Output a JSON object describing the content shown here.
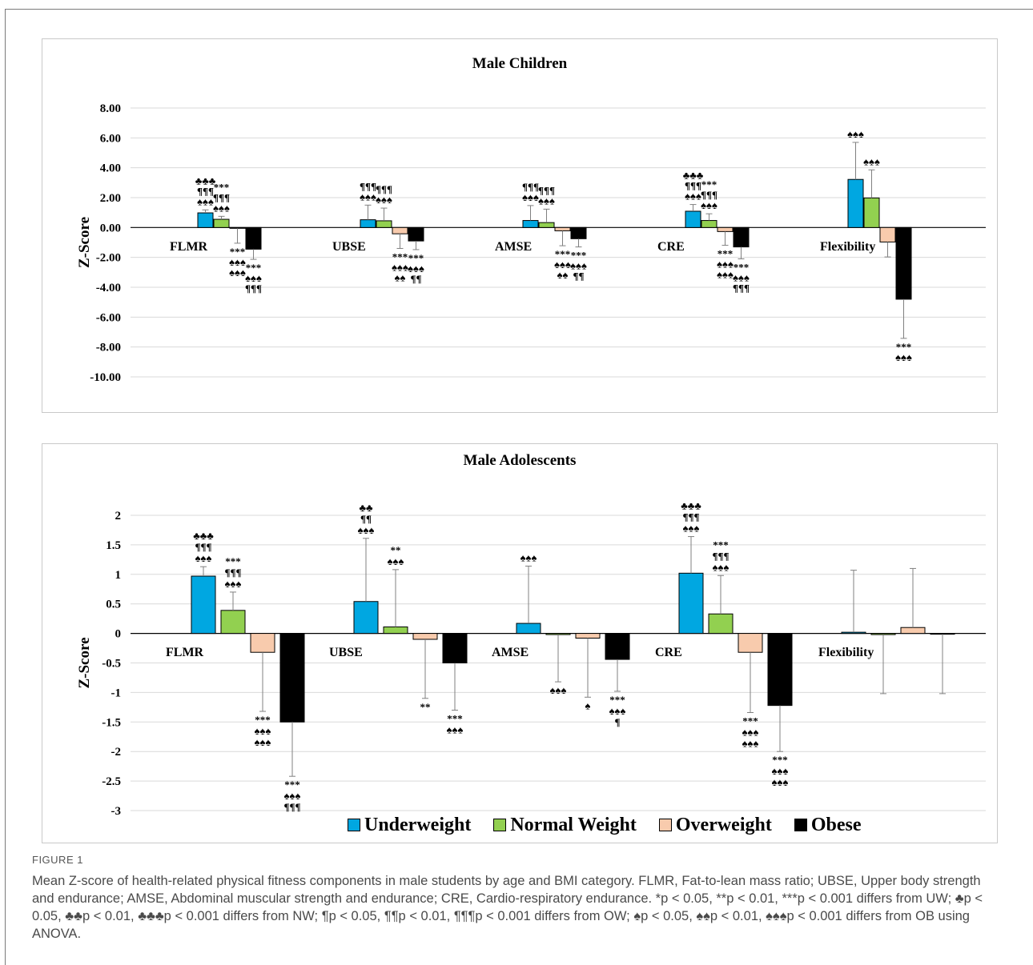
{
  "chart_data": [
    {
      "type": "bar",
      "title": "Male Children",
      "ylabel": "Z-Score",
      "xlabel": "",
      "ylim": [
        -10,
        8
      ],
      "y_ticks": [
        "8.00",
        "6.00",
        "4.00",
        "2.00",
        "0.00",
        "-2.00",
        "-4.00",
        "-6.00",
        "-8.00",
        "-10.00"
      ],
      "y_tick_values": [
        8,
        6,
        4,
        2,
        0,
        -2,
        -4,
        -6,
        -8,
        -10
      ],
      "categories": [
        "FLMR",
        "UBSE",
        "AMSE",
        "CRE",
        "Flexibility"
      ],
      "grid": true,
      "series": [
        {
          "name": "Underweight",
          "color": "#00a7e1",
          "values": [
            0.98,
            0.52,
            0.47,
            1.09,
            3.22
          ],
          "errors": [
            0.2,
            0.98,
            1.0,
            0.45,
            2.48
          ]
        },
        {
          "name": "Normal Weight",
          "color": "#92d050",
          "values": [
            0.55,
            0.45,
            0.33,
            0.47,
            1.98
          ],
          "errors": [
            0.2,
            0.85,
            0.9,
            0.45,
            1.88
          ]
        },
        {
          "name": "Overweight",
          "color": "#f8cbad",
          "values": [
            -0.05,
            -0.42,
            -0.22,
            -0.27,
            -0.97
          ],
          "errors": [
            1.0,
            0.98,
            1.0,
            0.92,
            1.0
          ]
        },
        {
          "name": "Obese",
          "color": "#000000",
          "values": [
            -1.45,
            -0.9,
            -0.75,
            -1.3,
            -4.8
          ],
          "errors": [
            0.68,
            0.58,
            0.55,
            0.8,
            2.62
          ]
        }
      ],
      "annotations": [
        [
          "♣♣♣\n¶¶¶\n♠♠♠",
          "***\n¶¶¶\n♠♠♠",
          "***\n♠♠♠\n♠♠♠",
          "***\n♠♠♠\n¶¶¶"
        ],
        [
          "¶¶¶\n♠♠♠",
          "¶¶¶\n♠♠♠",
          "***\n♠♠♠\n♠♠",
          "***\n♠♠♠\n¶¶"
        ],
        [
          "¶¶¶\n♠♠♠",
          "¶¶¶\n♠♠♠",
          "***\n♠♠♠\n♠♠",
          "***\n♠♠♠\n¶¶"
        ],
        [
          "♣♣♣\n¶¶¶\n♠♠♠",
          "***\n¶¶¶\n♠♠♠",
          "***\n♠♠♠\n♠♠♠",
          "***\n♠♠♠\n¶¶¶"
        ],
        [
          "♠♠♠",
          "♠♠♠",
          "",
          "***\n♠♠♠"
        ]
      ]
    },
    {
      "type": "bar",
      "title": "Male Adolescents",
      "ylabel": "Z-Score",
      "xlabel": "",
      "ylim": [
        -3,
        2
      ],
      "y_ticks": [
        "2",
        "1.5",
        "1",
        "0.5",
        "0",
        "-0.5",
        "-1",
        "-1.5",
        "-2",
        "-2.5",
        "-3"
      ],
      "y_tick_values": [
        2,
        1.5,
        1,
        0.5,
        0,
        -0.5,
        -1,
        -1.5,
        -2,
        -2.5,
        -3
      ],
      "categories": [
        "FLMR",
        "UBSE",
        "AMSE",
        "CRE",
        "Flexibility"
      ],
      "grid": true,
      "series": [
        {
          "name": "Underweight",
          "color": "#00a7e1",
          "values": [
            0.97,
            0.54,
            0.17,
            1.02,
            0.02
          ],
          "errors": [
            0.16,
            1.07,
            0.97,
            0.62,
            1.05
          ]
        },
        {
          "name": "Normal Weight",
          "color": "#92d050",
          "values": [
            0.39,
            0.11,
            -0.02,
            0.33,
            -0.02
          ],
          "errors": [
            0.31,
            0.97,
            0.8,
            0.65,
            1.0
          ]
        },
        {
          "name": "Overweight",
          "color": "#f8cbad",
          "values": [
            -0.32,
            -0.1,
            -0.08,
            -0.32,
            0.1
          ],
          "errors": [
            1.0,
            1.0,
            1.0,
            1.02,
            1.0
          ]
        },
        {
          "name": "Obese",
          "color": "#000000",
          "values": [
            -1.5,
            -0.5,
            -0.44,
            -1.22,
            -0.01
          ],
          "errors": [
            0.92,
            0.8,
            0.54,
            0.78,
            1.01
          ]
        }
      ],
      "annotations": [
        [
          "♣♣♣\n¶¶¶\n♠♠♠",
          "***\n¶¶¶\n♠♠♠",
          "***\n♠♠♠\n♠♠♠",
          "***\n♠♠♠\n¶¶¶"
        ],
        [
          "♣♣\n¶¶\n♠♠♠",
          "**\n♠♠♠",
          "**",
          "***\n♠♠♠"
        ],
        [
          "♠♠♠",
          "♠♠♠",
          "♠",
          "***\n♠♠♠\n¶"
        ],
        [
          "♣♣♣\n¶¶¶\n♠♠♠",
          "***\n¶¶¶\n♠♠♠",
          "***\n♠♠♠\n♠♠♠",
          "***\n♠♠♠\n♠♠♠"
        ],
        [
          "",
          "",
          "",
          ""
        ]
      ]
    }
  ],
  "legend": {
    "items": [
      {
        "label": "Underweight",
        "color": "#00a7e1"
      },
      {
        "label": "Normal Weight",
        "color": "#92d050"
      },
      {
        "label": "Overweight",
        "color": "#f8cbad"
      },
      {
        "label": "Obese",
        "color": "#000000"
      }
    ]
  },
  "caption": {
    "label": "FIGURE 1",
    "text": "Mean Z-score of health-related physical fitness components in male students by age and BMI category. FLMR, Fat-to-lean mass ratio; UBSE, Upper body strength and endurance; AMSE, Abdominal muscular strength and endurance; CRE, Cardio-respiratory endurance. *p < 0.05, **p < 0.01, ***p < 0.001 differs from UW; ♣p < 0.05, ♣♣p < 0.01, ♣♣♣p < 0.001 differs from NW; ¶p < 0.05, ¶¶p < 0.01, ¶¶¶p < 0.001 differs from OW; ♠p < 0.05, ♠♠p < 0.01, ♠♠♠p < 0.001 differs from OB using ANOVA."
  }
}
